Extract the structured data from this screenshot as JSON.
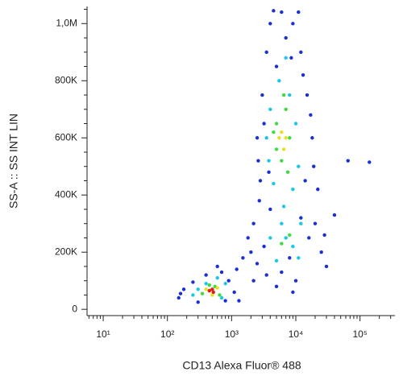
{
  "chart_data": {
    "type": "scatter",
    "x_label": "CD13 Alexa Fluor® 488",
    "y_label": "SS-A :: SS INT LIN",
    "xscale": "log",
    "xlim": [
      5.6,
      350000
    ],
    "ylim": [
      -22000,
      1060000
    ],
    "xticks": [
      {
        "value": 10,
        "label": "10¹"
      },
      {
        "value": 100,
        "label": "10²"
      },
      {
        "value": 1000,
        "label": "10³"
      },
      {
        "value": 10000,
        "label": "10⁴"
      },
      {
        "value": 100000,
        "label": "10⁵"
      }
    ],
    "xminorticks": [
      6,
      7,
      8,
      9,
      20,
      30,
      40,
      50,
      60,
      70,
      80,
      90,
      200,
      300,
      400,
      500,
      600,
      700,
      800,
      900,
      2000,
      3000,
      4000,
      5000,
      6000,
      7000,
      8000,
      9000,
      20000,
      30000,
      40000,
      50000,
      60000,
      70000,
      80000,
      90000,
      200000,
      300000
    ],
    "yticks": [
      0,
      {
        "value": 200000,
        "label": "200K"
      },
      {
        "value": 400000,
        "label": "400K"
      },
      {
        "value": 600000,
        "label": "600K"
      },
      {
        "value": 800000,
        "label": "800K"
      },
      {
        "value": 1000000,
        "label": "1,0M"
      }
    ],
    "yminorticks": [
      50000,
      100000,
      150000,
      250000,
      300000,
      350000,
      450000,
      500000,
      550000,
      650000,
      700000,
      750000,
      850000,
      900000,
      950000,
      1050000
    ],
    "series": [
      {
        "color": "#1a2fd6",
        "x": [
          150,
          180,
          250,
          300,
          700,
          900,
          1200,
          1500,
          800,
          1100,
          2000,
          2500,
          2200,
          2800,
          2500,
          3000,
          3500,
          4000,
          6000,
          9000,
          12000,
          15000,
          18000,
          14000,
          20000,
          25000,
          30000,
          10000,
          5000,
          3500,
          2200,
          1800,
          4000,
          3200,
          8000,
          16000,
          12000,
          7000,
          5000,
          13000,
          3200,
          17000,
          2700,
          22000,
          140000,
          65000,
          40000,
          28000,
          6000,
          9000,
          600,
          400,
          160,
          1300,
          2600,
          11000,
          4500,
          8500,
          19000,
          3800
        ],
        "values": [
          40000,
          70000,
          95000,
          25000,
          130000,
          100000,
          140000,
          180000,
          30000,
          60000,
          200000,
          160000,
          300000,
          450000,
          600000,
          750000,
          900000,
          1000000,
          1040000,
          1000000,
          900000,
          750000,
          600000,
          450000,
          300000,
          200000,
          150000,
          100000,
          80000,
          120000,
          100000,
          250000,
          350000,
          220000,
          180000,
          250000,
          320000,
          950000,
          850000,
          820000,
          650000,
          680000,
          380000,
          420000,
          515000,
          520000,
          330000,
          260000,
          130000,
          60000,
          150000,
          120000,
          55000,
          30000,
          520000,
          1040000,
          1045000,
          880000,
          500000,
          480000
        ]
      },
      {
        "color": "#19c7e6",
        "x": [
          3500,
          4000,
          5500,
          8000,
          10000,
          11000,
          9000,
          4500,
          3800,
          7000,
          4000,
          6000,
          9000,
          11000,
          5000,
          7000,
          400,
          300,
          700,
          800,
          250,
          600,
          6500,
          12000
        ],
        "values": [
          600000,
          700000,
          800000,
          750000,
          650000,
          500000,
          420000,
          440000,
          520000,
          880000,
          250000,
          300000,
          220000,
          180000,
          170000,
          250000,
          90000,
          70000,
          40000,
          90000,
          50000,
          110000,
          360000,
          300000
        ]
      },
      {
        "color": "#3fdc3f",
        "x": [
          5000,
          7000,
          8000,
          6000,
          5000,
          7500,
          4500,
          6500,
          550,
          350,
          450,
          650,
          6000,
          8000
        ],
        "values": [
          650000,
          700000,
          600000,
          520000,
          560000,
          480000,
          620000,
          750000,
          80000,
          55000,
          85000,
          50000,
          230000,
          260000
        ]
      },
      {
        "color": "#e6e020",
        "x": [
          6000,
          6500,
          7000,
          5500,
          400,
          600,
          500
        ],
        "values": [
          620000,
          560000,
          600000,
          600000,
          70000,
          75000,
          50000
        ]
      },
      {
        "color": "#e02010",
        "x": [
          450,
          520,
          500
        ],
        "values": [
          65000,
          60000,
          70000
        ]
      }
    ]
  }
}
